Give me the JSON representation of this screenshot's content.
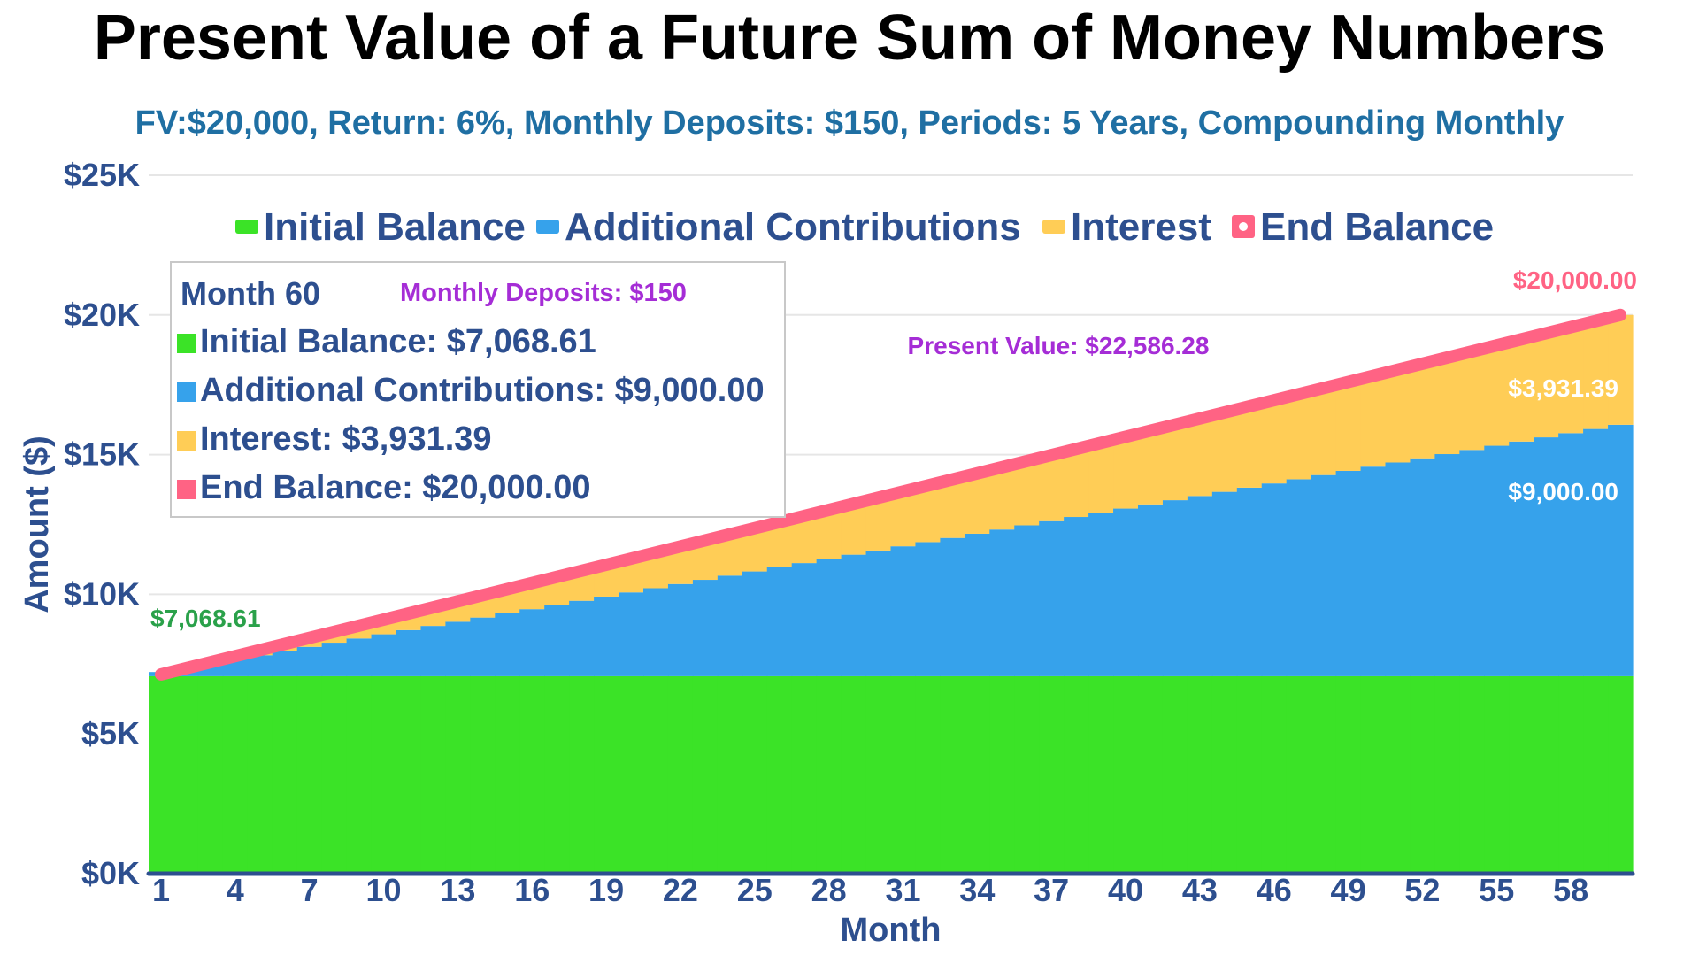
{
  "title": "Present Value of a Future Sum of Money Numbers",
  "subtitle": "FV:$20,000, Return: 6%, Monthly Deposits: $150, Periods: 5 Years, Compounding Monthly",
  "colors": {
    "initial": "#3be327",
    "contributions": "#36a2eb",
    "interest": "#ffcd56",
    "end_balance": "#ff6384",
    "axis_text": "#2d4f8f",
    "subtitle": "#1f6fa3",
    "purple": "#a52dd6",
    "green_label": "#2aa14a"
  },
  "tooltip": {
    "title": "Month 60",
    "deposit_note": "Monthly Deposits: $150",
    "rows": [
      "Initial Balance: $7,068.61",
      "Additional Contributions: $9,000.00",
      "Interest: $3,931.39",
      "End Balance: $20,000.00"
    ]
  },
  "annotations": {
    "present_value": "Present Value: $22,586.28",
    "start_value": "$7,068.61",
    "end_value": "$20,000.00",
    "interest_value": "$3,931.39",
    "contrib_value": "$9,000.00"
  },
  "chart_data": {
    "type": "area",
    "title": "Present Value of a Future Sum of Money Numbers",
    "subtitle": "FV:$20,000, Return: 6%, Monthly Deposits: $150, Periods: 5 Years, Compounding Monthly",
    "xlabel": "Month",
    "ylabel": "Amount ($)",
    "ylim": [
      0,
      25000
    ],
    "yticks": [
      "$0K",
      "$5K",
      "$10K",
      "$15K",
      "$20K",
      "$25K"
    ],
    "xtick_labels": [
      "1",
      "4",
      "7",
      "10",
      "13",
      "16",
      "19",
      "22",
      "25",
      "28",
      "31",
      "34",
      "37",
      "40",
      "43",
      "46",
      "49",
      "52",
      "55",
      "58"
    ],
    "legend": {
      "position": "top",
      "entries": [
        "Initial Balance",
        "Additional Contributions",
        "Interest",
        "End Balance"
      ]
    },
    "grid": true,
    "periods": 60,
    "series": [
      {
        "name": "Initial Balance",
        "type": "area",
        "start": 7068.61,
        "end": 7068.61
      },
      {
        "name": "Additional Contributions",
        "type": "area",
        "start": 0,
        "end": 9000.0
      },
      {
        "name": "Interest",
        "type": "area",
        "start": 0,
        "end": 3931.39
      },
      {
        "name": "End Balance",
        "type": "line",
        "start": 7068.61,
        "end": 20000.0
      }
    ]
  }
}
